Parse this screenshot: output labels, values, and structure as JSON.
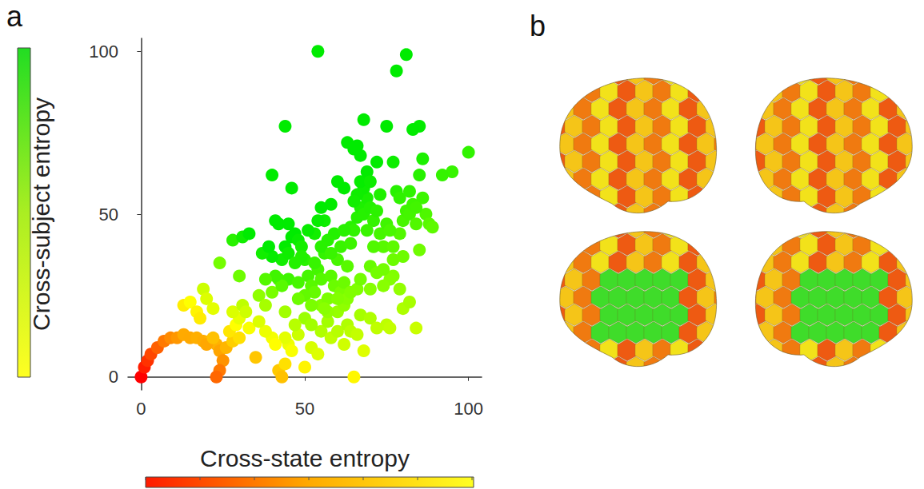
{
  "chart_data": {
    "type": "scatter",
    "panel_label": "a",
    "x_label": "Cross-state entropy",
    "y_label": "Cross-subject entropy",
    "x": [
      0,
      1,
      2,
      3,
      5,
      7,
      9,
      11,
      13,
      15,
      17,
      19,
      21,
      23,
      24,
      25,
      24,
      23,
      20,
      22,
      26,
      28,
      27,
      29,
      30,
      28,
      31,
      30,
      33,
      13,
      15,
      17,
      19,
      20,
      22,
      18,
      24,
      28,
      31,
      33,
      30,
      32,
      35,
      40,
      42,
      43,
      44,
      45,
      46,
      48,
      50,
      52,
      54,
      55,
      57,
      58,
      60,
      62,
      63,
      65,
      64,
      66,
      67,
      68,
      70,
      72,
      75,
      76,
      80,
      84,
      77,
      60,
      55,
      50,
      47,
      44,
      41,
      38,
      36,
      52,
      57,
      62,
      36,
      38,
      40,
      42,
      43,
      44,
      45,
      46,
      47,
      48,
      49,
      50,
      51,
      52,
      53,
      54,
      55,
      56,
      57,
      58,
      59,
      60,
      61,
      62,
      63,
      64,
      65,
      66,
      67,
      68,
      69,
      70,
      71,
      72,
      73,
      74,
      75,
      76,
      77,
      78,
      79,
      80,
      81,
      82,
      83,
      84,
      85,
      86,
      87,
      88,
      89,
      84,
      68,
      67,
      66,
      65,
      69,
      70,
      72,
      74,
      66,
      63,
      61,
      59,
      57,
      55,
      53,
      51,
      49,
      47,
      45,
      43,
      41,
      40,
      42,
      41,
      45,
      48,
      50,
      37,
      39,
      38,
      53,
      58,
      62,
      64,
      71,
      77,
      79,
      82,
      86,
      85,
      83,
      77,
      75,
      68,
      63,
      65,
      67,
      60,
      62,
      58,
      55,
      56,
      54,
      46,
      44,
      40,
      66,
      78,
      81,
      54,
      95,
      100,
      92,
      69,
      72,
      67,
      70,
      74,
      80,
      44,
      48,
      52,
      56,
      60,
      64,
      79,
      82,
      85,
      76,
      73,
      70
    ],
    "values": [
      0,
      3,
      5,
      7,
      9,
      11,
      12,
      12,
      13,
      12,
      12,
      11,
      11,
      10,
      8,
      5,
      2,
      0,
      10,
      12,
      9,
      11,
      14,
      16,
      18,
      20,
      22,
      12,
      15,
      22,
      23,
      20,
      27,
      24,
      21,
      18,
      35,
      42,
      43,
      44,
      31,
      20,
      6,
      12,
      2,
      0,
      4,
      10,
      8,
      13,
      3,
      9,
      7,
      14,
      17,
      12,
      14,
      10,
      16,
      0,
      14,
      13,
      19,
      8,
      18,
      15,
      16,
      15,
      21,
      15,
      31,
      20,
      22,
      18,
      16,
      12,
      10,
      14,
      17,
      16,
      20,
      22,
      25,
      22,
      26,
      30,
      36,
      40,
      38,
      43,
      44,
      42,
      40,
      36,
      31,
      28,
      26,
      33,
      30,
      38,
      24,
      31,
      28,
      36,
      26,
      29,
      34,
      46,
      45,
      49,
      52,
      50,
      55,
      52,
      48,
      51,
      44,
      40,
      47,
      30,
      36,
      57,
      55,
      48,
      51,
      50,
      53,
      47,
      62,
      55,
      50,
      47,
      46,
      52,
      58,
      60,
      56,
      54,
      45,
      34,
      32,
      28,
      27,
      24,
      40,
      44,
      42,
      40,
      44,
      45,
      37,
      35,
      30,
      28,
      31,
      37,
      47,
      48,
      47,
      29,
      25,
      38,
      40,
      30,
      35,
      38,
      45,
      41,
      40,
      40,
      44,
      57,
      67,
      77,
      76,
      66,
      77,
      79,
      72,
      70,
      68,
      60,
      58,
      53,
      52,
      48,
      48,
      58,
      77,
      62,
      71,
      94,
      99,
      100,
      63,
      69,
      62,
      63,
      66,
      30,
      27,
      33,
      37,
      20,
      24,
      22,
      21,
      24,
      26,
      27,
      23,
      39,
      45,
      56,
      60
    ],
    "xlim": [
      -4,
      104
    ],
    "ylim": [
      -4,
      104
    ],
    "xticks": [
      0,
      50,
      100
    ],
    "yticks": [
      0,
      50,
      100
    ],
    "grid": false
  },
  "panel_b": {
    "panel_label": "b"
  }
}
